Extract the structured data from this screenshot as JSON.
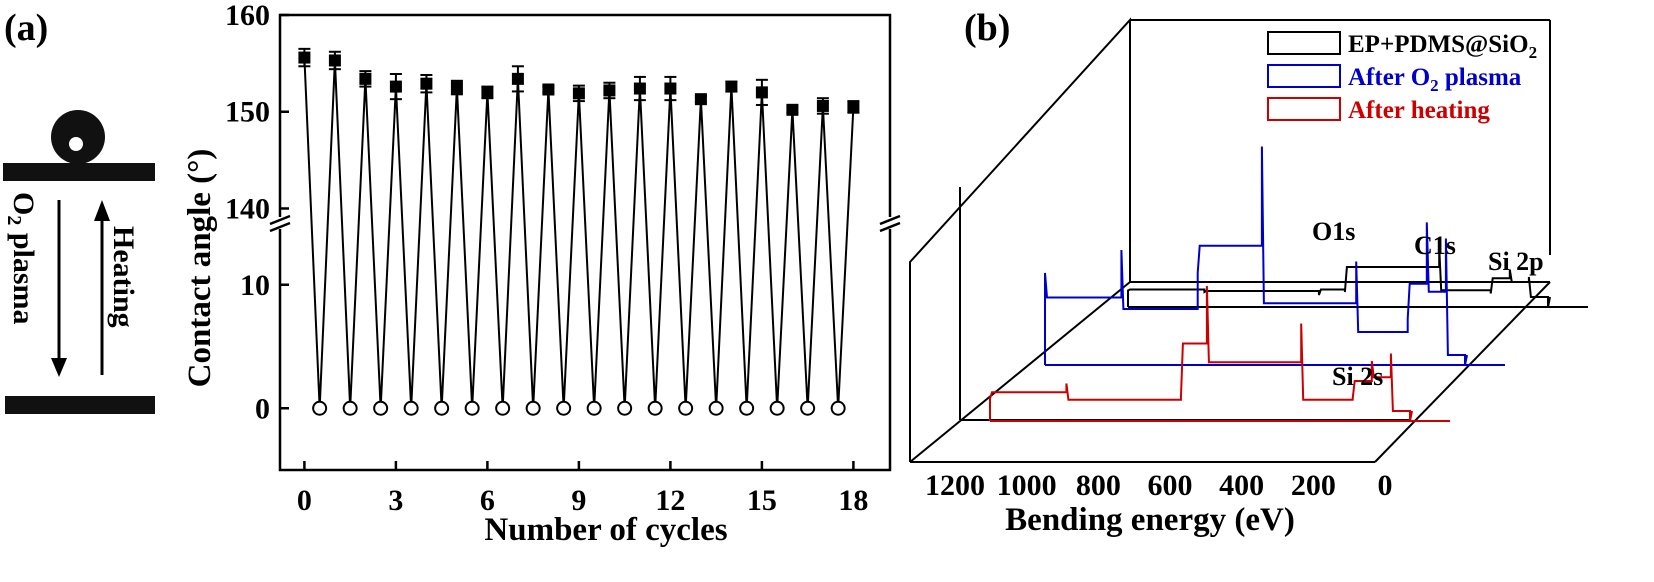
{
  "panel_a": {
    "label": "(a)",
    "side": {
      "up_label": "Heating",
      "down_label_main": "O",
      "down_label_sub": "2",
      "down_label_rest": " plasma"
    }
  },
  "panel_b": {
    "label": "(b)",
    "legend": [
      {
        "pre": "EP+PDMS@SiO",
        "sub": "2",
        "post": "",
        "color": "#000000"
      },
      {
        "pre": "After O",
        "sub": "2",
        "post": " plasma",
        "color": "#0000cc"
      },
      {
        "pre": "After heating",
        "sub": "",
        "post": "",
        "color": "#cc0000"
      }
    ],
    "annotations": [
      "O1s",
      "C1s",
      "Si 2p",
      "Si 2s"
    ]
  },
  "chart_data": [
    {
      "type": "line",
      "xlabel": "Number of cycles",
      "ylabel": "Contact angle (°)",
      "x_ticks": [
        0,
        3,
        6,
        9,
        12,
        15,
        18
      ],
      "y_ticks_lower": [
        0,
        10
      ],
      "y_ticks_upper": [
        140,
        150,
        160
      ],
      "ylim_lower": [
        -5,
        15
      ],
      "ylim_upper": [
        138.5,
        160
      ],
      "axis_break": true,
      "series": [
        {
          "marker": "filled-square",
          "x": [
            0,
            1,
            2,
            3,
            4,
            5,
            6,
            7,
            8,
            9,
            10,
            11,
            12,
            13,
            14,
            15,
            16,
            17,
            18
          ],
          "values": [
            155.6,
            155.3,
            153.4,
            152.6,
            152.9,
            152.5,
            152.0,
            153.4,
            152.3,
            151.9,
            152.2,
            152.4,
            152.4,
            151.3,
            152.6,
            152.0,
            150.2,
            150.6,
            150.5
          ],
          "errors": [
            0.9,
            0.9,
            0.8,
            1.3,
            0.9,
            0.7,
            0.6,
            1.3,
            0.3,
            0.8,
            0.8,
            1.2,
            1.2,
            0.3,
            0.5,
            1.3,
            0.3,
            0.8,
            0.6
          ]
        },
        {
          "marker": "open-circle",
          "x": [
            0.5,
            1.5,
            2.5,
            3.5,
            4.5,
            5.5,
            6.5,
            7.5,
            8.5,
            9.5,
            10.5,
            11.5,
            12.5,
            13.5,
            14.5,
            15.5,
            16.5,
            17.5
          ],
          "values": [
            0,
            0,
            0,
            0,
            0,
            0,
            0,
            0,
            0,
            0,
            0,
            0,
            0,
            0,
            0,
            0,
            0,
            0
          ]
        }
      ]
    },
    {
      "type": "line",
      "xlabel": "Bending energy (eV)",
      "x_ticks": [
        1200,
        1000,
        800,
        600,
        400,
        200,
        0
      ],
      "xlim": [
        1200,
        0
      ],
      "series": [
        {
          "name": "EP+PDMS@SiO2",
          "color": "#000000",
          "x": [
            1100,
            900,
            600,
            532,
            285,
            150,
            100,
            50,
            0
          ],
          "values": [
            0.11,
            0.1,
            0.08,
            0.1,
            0.4,
            0.09,
            0.25,
            0.2,
            0.0
          ]
        },
        {
          "name": "After O2 plasma",
          "color": "#0000cc",
          "x": [
            1100,
            900,
            700,
            532,
            285,
            150,
            100,
            50,
            0
          ],
          "values": [
            0.4,
            0.5,
            0.4,
            0.95,
            0.45,
            0.2,
            0.62,
            0.55,
            0.0
          ]
        },
        {
          "name": "After heating",
          "color": "#cc0000",
          "x": [
            1100,
            900,
            600,
            532,
            285,
            150,
            100,
            50,
            0
          ],
          "values": [
            0.15,
            0.25,
            0.15,
            0.9,
            0.65,
            0.15,
            0.4,
            0.45,
            0.0
          ]
        }
      ]
    }
  ]
}
